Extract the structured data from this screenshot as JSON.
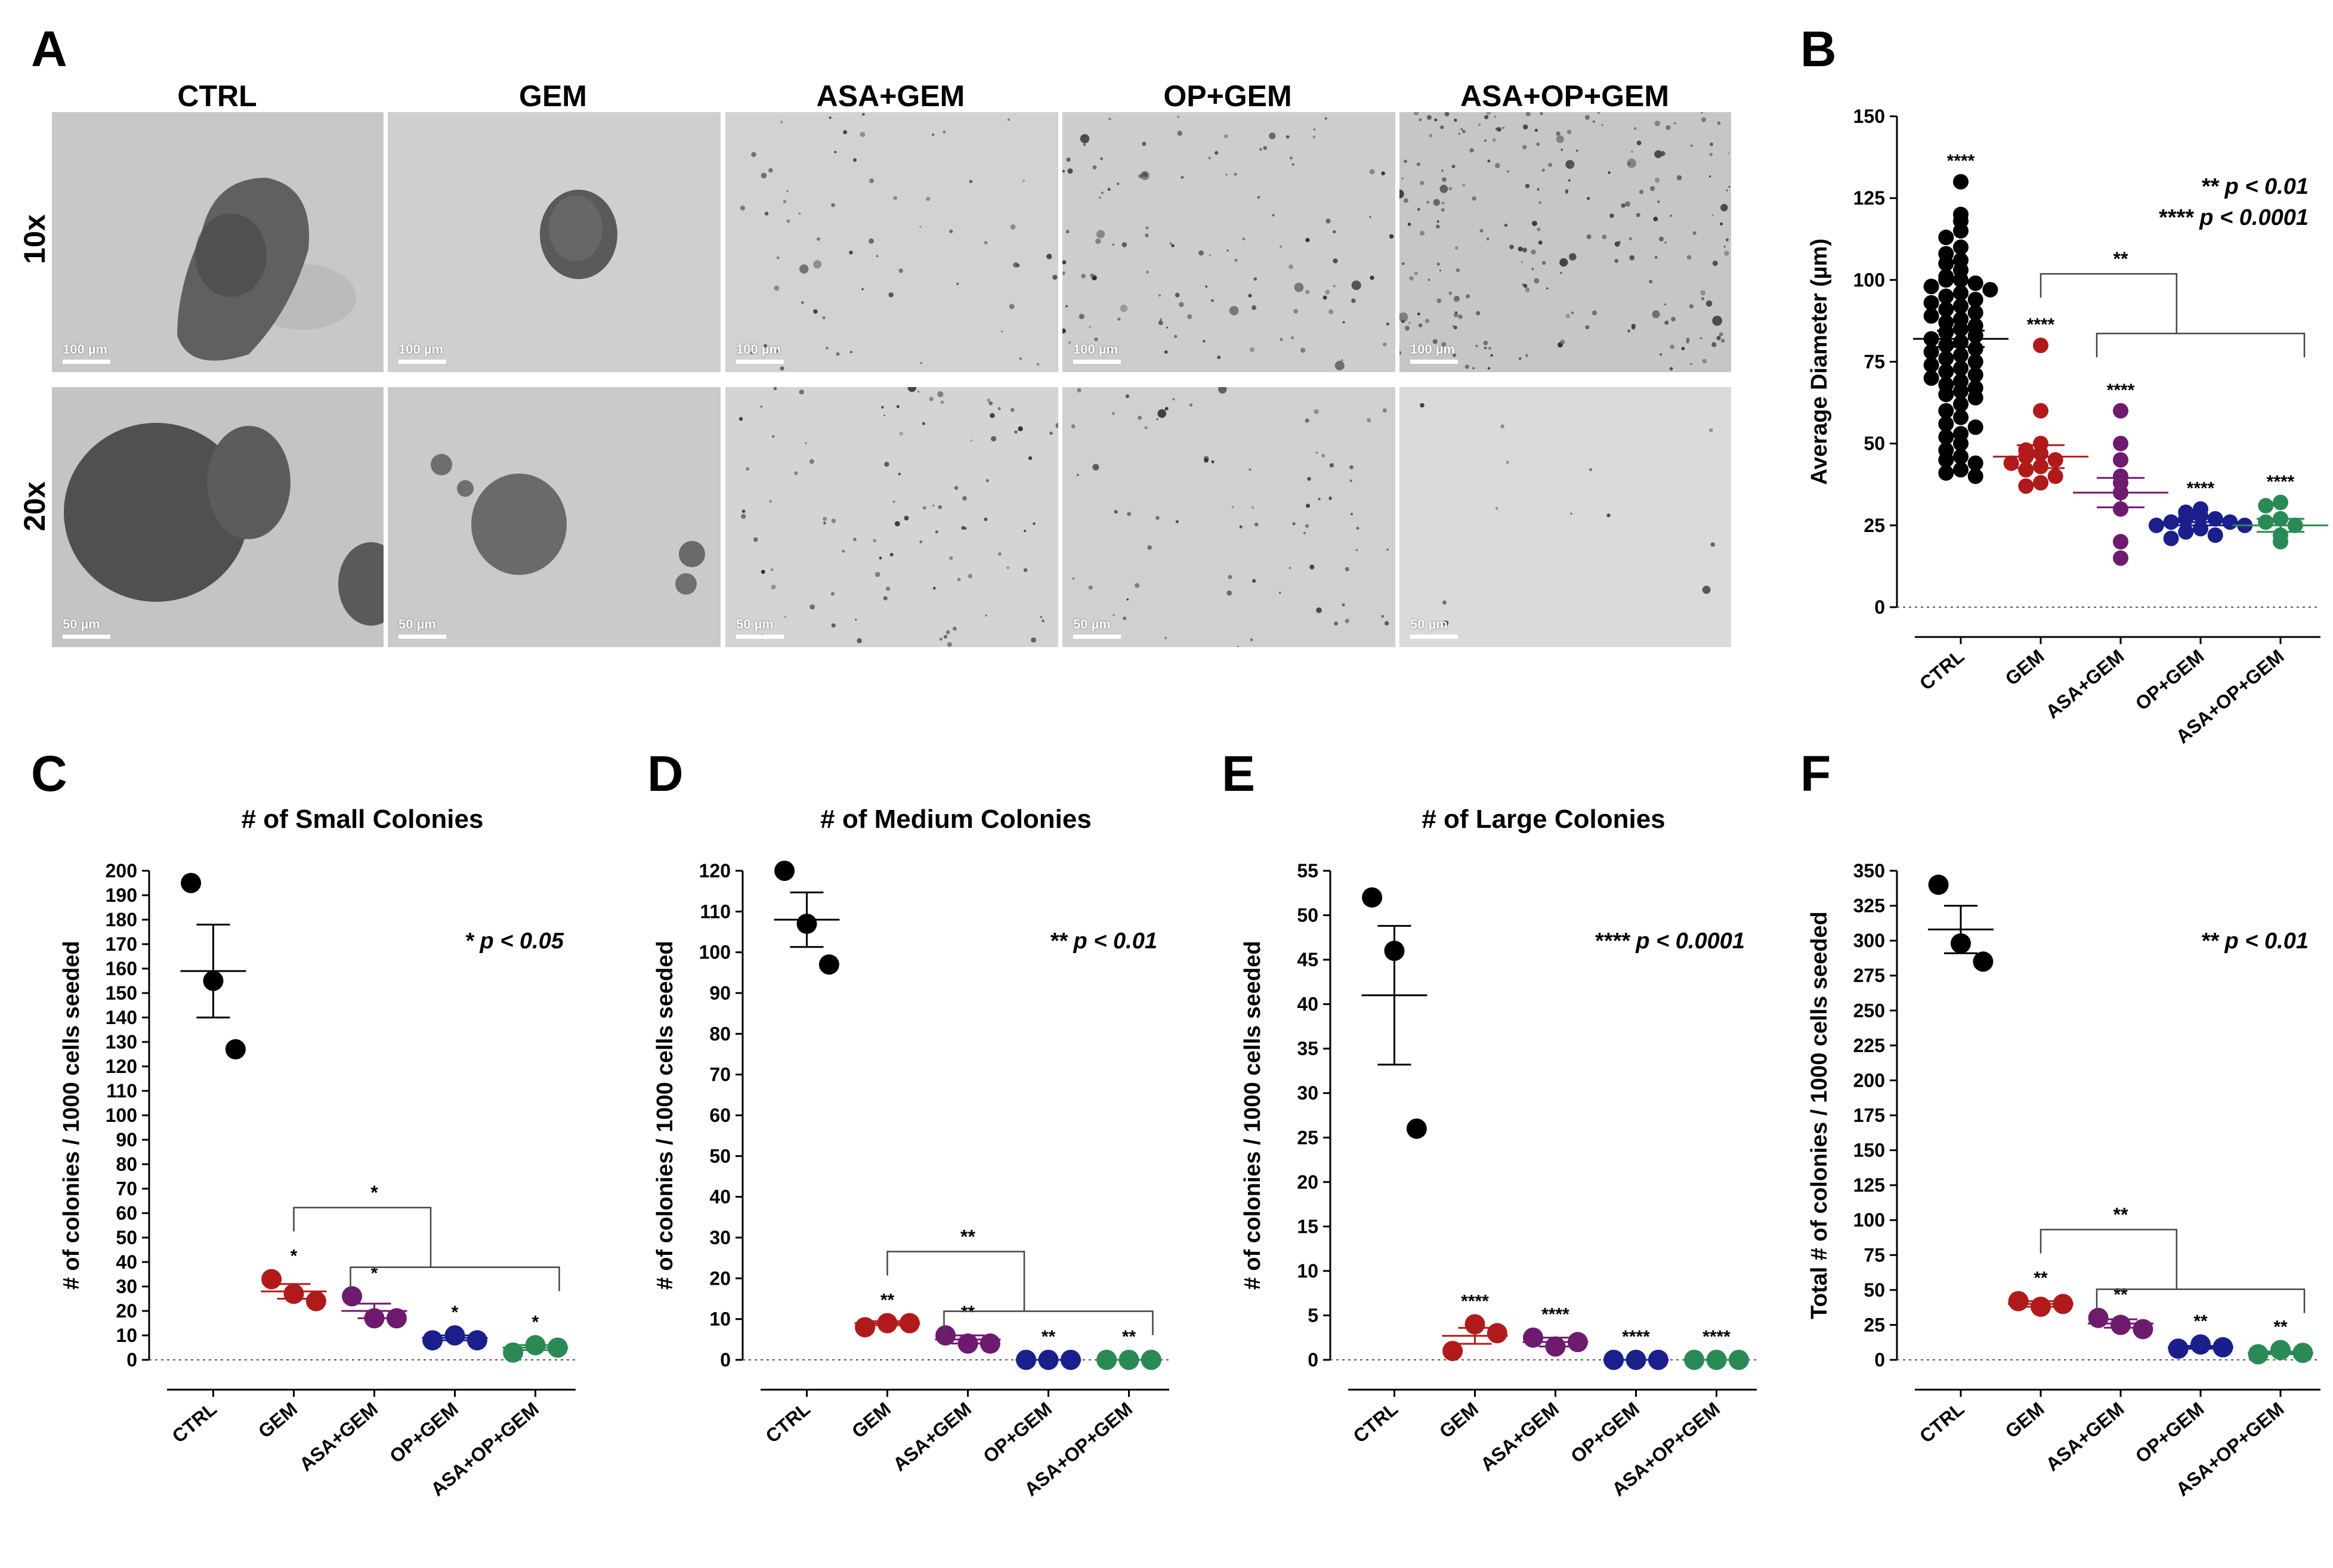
{
  "panelA": {
    "letter": "A",
    "columns": [
      "CTRL",
      "GEM",
      "ASA+GEM",
      "OP+GEM",
      "ASA+OP+GEM"
    ],
    "rows": [
      {
        "label": "10x",
        "scale_label": "100 µm"
      },
      {
        "label": "20x",
        "scale_label": "50 µm"
      }
    ]
  },
  "chart_data": [
    {
      "panel": "B",
      "type": "scatter",
      "title": "",
      "ylabel": "Average Diameter (µm)",
      "ylim": [
        0,
        150
      ],
      "yticks": [
        0,
        25,
        50,
        75,
        100,
        125,
        150
      ],
      "categories": [
        "CTRL",
        "GEM",
        "ASA+GEM",
        "OP+GEM",
        "ASA+OP+GEM"
      ],
      "colors": [
        "#000000",
        "#b11a1a",
        "#6e1a6e",
        "#1b1f8c",
        "#2a8a55"
      ],
      "series": [
        {
          "points": [
            130,
            120,
            118,
            115,
            113,
            110,
            108,
            106,
            105,
            103,
            101,
            100,
            100,
            99,
            98,
            97,
            96,
            95,
            94,
            93,
            92,
            91,
            90,
            89,
            88,
            87,
            86,
            85,
            84,
            83,
            82,
            81,
            80,
            79,
            78,
            77,
            76,
            75,
            74,
            73,
            72,
            71,
            70,
            69,
            68,
            67,
            66,
            65,
            64,
            62,
            60,
            58,
            56,
            55,
            53,
            52,
            50,
            48,
            46,
            45,
            44,
            42,
            41,
            40
          ],
          "mean": 82,
          "sem": 2.5,
          "sig": "****"
        },
        {
          "points": [
            80,
            60,
            50,
            48,
            47,
            46,
            45,
            44,
            43,
            42,
            40,
            38,
            37
          ],
          "mean": 46,
          "sem": 3.5,
          "sig": "****"
        },
        {
          "points": [
            60,
            50,
            45,
            40,
            38,
            35,
            30,
            20,
            15
          ],
          "mean": 35,
          "sem": 4.5,
          "sig": "****"
        },
        {
          "points": [
            30,
            29,
            28,
            27,
            27,
            26,
            26,
            25,
            25,
            24,
            23,
            22,
            21
          ],
          "mean": 26,
          "sem": 1,
          "sig": "****"
        },
        {
          "points": [
            32,
            31,
            27,
            26,
            25,
            22,
            20
          ],
          "mean": 25,
          "sem": 2,
          "sig": "****"
        }
      ],
      "comparison_label": "**",
      "annotations": [
        "** p < 0.01",
        "**** p < 0.0001"
      ]
    },
    {
      "panel": "C",
      "type": "scatter",
      "title": "# of Small Colonies",
      "ylabel": "# of colonies / 1000 cells seeded",
      "ylim": [
        0,
        200
      ],
      "yticks": [
        0,
        10,
        20,
        30,
        40,
        50,
        60,
        70,
        80,
        90,
        100,
        110,
        120,
        130,
        140,
        150,
        160,
        170,
        180,
        190,
        200
      ],
      "categories": [
        "CTRL",
        "GEM",
        "ASA+GEM",
        "OP+GEM",
        "ASA+OP+GEM"
      ],
      "colors": [
        "#000000",
        "#b11a1a",
        "#6e1a6e",
        "#1b1f8c",
        "#2a8a55"
      ],
      "series": [
        {
          "points": [
            195,
            155,
            127
          ],
          "mean": 159,
          "sem": 19,
          "sig": ""
        },
        {
          "points": [
            33,
            27,
            24
          ],
          "mean": 28,
          "sem": 3,
          "sig": "*"
        },
        {
          "points": [
            26,
            17,
            17
          ],
          "mean": 20,
          "sem": 3,
          "sig": "*"
        },
        {
          "points": [
            8,
            10,
            8
          ],
          "mean": 9,
          "sem": 1,
          "sig": "*"
        },
        {
          "points": [
            3,
            6,
            5
          ],
          "mean": 5,
          "sem": 1,
          "sig": "*"
        }
      ],
      "comparison_label": "*",
      "annotations": [
        "* p < 0.05"
      ]
    },
    {
      "panel": "D",
      "type": "scatter",
      "title": "# of Medium Colonies",
      "ylabel": "# of colonies / 1000 cells seeded",
      "ylim": [
        0,
        120
      ],
      "yticks": [
        0,
        10,
        20,
        30,
        40,
        50,
        60,
        70,
        80,
        90,
        100,
        110,
        120
      ],
      "categories": [
        "CTRL",
        "GEM",
        "ASA+GEM",
        "OP+GEM",
        "ASA+OP+GEM"
      ],
      "colors": [
        "#000000",
        "#b11a1a",
        "#6e1a6e",
        "#1b1f8c",
        "#2a8a55"
      ],
      "series": [
        {
          "points": [
            120,
            107,
            97
          ],
          "mean": 108,
          "sem": 6.7,
          "sig": ""
        },
        {
          "points": [
            8,
            9,
            9
          ],
          "mean": 9,
          "sem": 0.5,
          "sig": "**"
        },
        {
          "points": [
            6,
            4,
            4
          ],
          "mean": 5,
          "sem": 1,
          "sig": "**"
        },
        {
          "points": [
            0,
            0,
            0
          ],
          "mean": 0,
          "sem": 0,
          "sig": "**"
        },
        {
          "points": [
            0,
            0,
            0
          ],
          "mean": 0,
          "sem": 0,
          "sig": "**"
        }
      ],
      "comparison_label": "**",
      "annotations": [
        "** p < 0.01"
      ]
    },
    {
      "panel": "E",
      "type": "scatter",
      "title": "# of Large Colonies",
      "ylabel": "# of colonies / 1000 cells seeded",
      "ylim": [
        0,
        55
      ],
      "yticks": [
        0,
        5,
        10,
        15,
        20,
        25,
        30,
        35,
        40,
        45,
        50,
        55
      ],
      "categories": [
        "CTRL",
        "GEM",
        "ASA+GEM",
        "OP+GEM",
        "ASA+OP+GEM"
      ],
      "colors": [
        "#000000",
        "#b11a1a",
        "#6e1a6e",
        "#1b1f8c",
        "#2a8a55"
      ],
      "series": [
        {
          "points": [
            52,
            46,
            26
          ],
          "mean": 41,
          "sem": 7.8,
          "sig": ""
        },
        {
          "points": [
            1,
            4,
            3
          ],
          "mean": 2.7,
          "sem": 0.9,
          "sig": "****"
        },
        {
          "points": [
            2.5,
            1.5,
            2
          ],
          "mean": 2,
          "sem": 0.5,
          "sig": "****"
        },
        {
          "points": [
            0,
            0,
            0
          ],
          "mean": 0,
          "sem": 0,
          "sig": "****"
        },
        {
          "points": [
            0,
            0,
            0
          ],
          "mean": 0,
          "sem": 0,
          "sig": "****"
        }
      ],
      "comparison_label": "",
      "annotations": [
        "**** p < 0.0001"
      ]
    },
    {
      "panel": "F",
      "type": "scatter",
      "title": "",
      "ylabel": "Total # of colonies / 1000 cells seeded",
      "ylim": [
        0,
        350
      ],
      "yticks": [
        0,
        25,
        50,
        75,
        100,
        125,
        150,
        175,
        200,
        225,
        250,
        275,
        300,
        325,
        350
      ],
      "categories": [
        "CTRL",
        "GEM",
        "ASA+GEM",
        "OP+GEM",
        "ASA+OP+GEM"
      ],
      "colors": [
        "#000000",
        "#b11a1a",
        "#6e1a6e",
        "#1b1f8c",
        "#2a8a55"
      ],
      "series": [
        {
          "points": [
            340,
            298,
            285
          ],
          "mean": 308,
          "sem": 17,
          "sig": ""
        },
        {
          "points": [
            42,
            38,
            40
          ],
          "mean": 40,
          "sem": 2,
          "sig": "**"
        },
        {
          "points": [
            30,
            25,
            22
          ],
          "mean": 26,
          "sem": 3,
          "sig": "**"
        },
        {
          "points": [
            8,
            11,
            9
          ],
          "mean": 9,
          "sem": 1,
          "sig": "**"
        },
        {
          "points": [
            4,
            7,
            5
          ],
          "mean": 5,
          "sem": 1,
          "sig": "**"
        }
      ],
      "comparison_label": "**",
      "annotations": [
        "** p < 0.01"
      ]
    }
  ]
}
